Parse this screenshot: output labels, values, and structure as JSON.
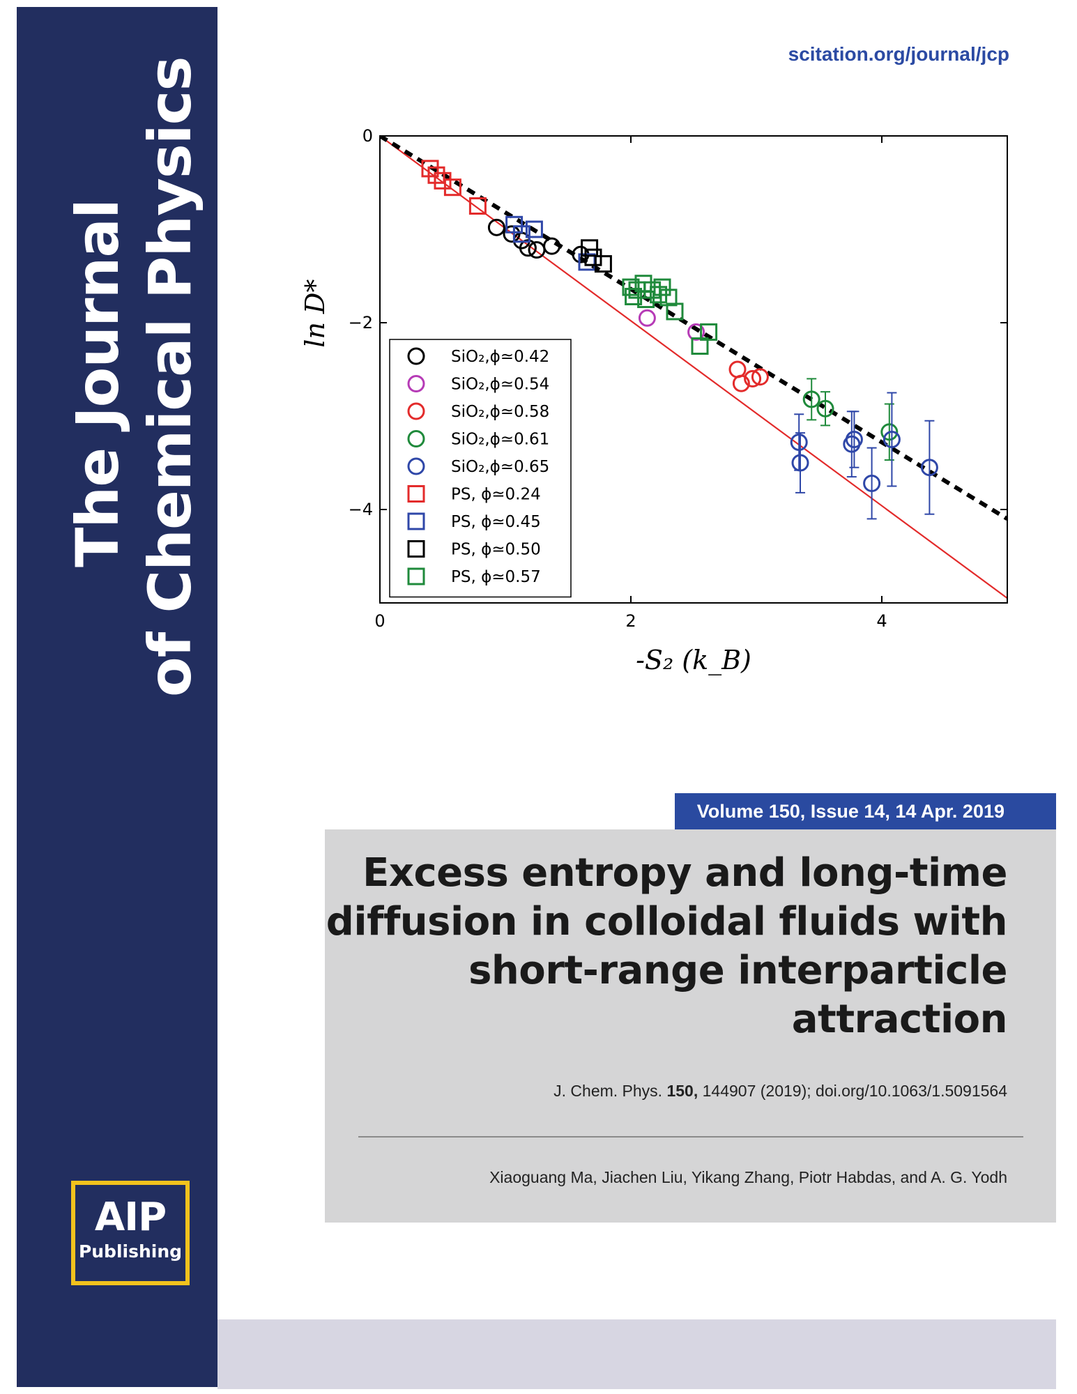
{
  "journal": {
    "title_line1": "The Journal",
    "title_line2": "of Chemical Physics",
    "url": "scitation.org/journal/jcp",
    "logo_line1": "AIP",
    "logo_line2": "Publishing",
    "brand_color": "#222e5f",
    "accent_color": "#2a4aa0",
    "logo_border_color": "#f2c21d"
  },
  "issue": {
    "banner": "Volume 150, Issue 14, 14 Apr. 2019"
  },
  "article": {
    "title": "Excess entropy and long-time diffusion in colloidal fluids with short-range interparticle attraction",
    "citation_prefix": "J. Chem. Phys. ",
    "citation_volume": "150,",
    "citation_rest": " 144907 (2019); doi.org/10.1063/1.5091564",
    "authors": "Xiaoguang Ma, Jiachen Liu, Yikang Zhang, Piotr Habdas, and A. G. Yodh"
  },
  "chart_data": {
    "type": "scatter",
    "xlabel": "-S₂ (k_B)",
    "ylabel": "ln D*",
    "xlim": [
      0,
      5
    ],
    "ylim": [
      -5,
      0
    ],
    "xticks": [
      0,
      2,
      4
    ],
    "yticks": [
      0,
      -2,
      -4
    ],
    "xtick_labels": [
      "0",
      "2",
      "4"
    ],
    "ytick_labels": [
      "0",
      "−2",
      "−4"
    ],
    "grid": false,
    "legend_position": "lower-left",
    "lines": [
      {
        "style": "solid",
        "color": "#e32b2b",
        "x": [
          0,
          5
        ],
        "y": [
          0,
          -4.95
        ]
      },
      {
        "style": "dashed",
        "color": "#000000",
        "x": [
          0,
          5
        ],
        "y": [
          0,
          -4.1
        ]
      }
    ],
    "series": [
      {
        "name": "SiO₂,ϕ≃0.42",
        "marker": "circle",
        "color": "#000000",
        "points": [
          [
            0.93,
            -0.98
          ],
          [
            1.05,
            -1.05
          ],
          [
            1.13,
            -1.12
          ],
          [
            1.18,
            -1.2
          ],
          [
            1.25,
            -1.22
          ],
          [
            1.37,
            -1.18
          ],
          [
            1.6,
            -1.27
          ]
        ]
      },
      {
        "name": "SiO₂,ϕ≃0.54",
        "marker": "circle",
        "color": "#b63bb6",
        "points": [
          [
            2.13,
            -1.95
          ],
          [
            2.52,
            -2.1
          ]
        ]
      },
      {
        "name": "SiO₂,ϕ≃0.58",
        "marker": "circle",
        "color": "#e32b2b",
        "points": [
          [
            2.85,
            -2.5
          ],
          [
            2.88,
            -2.65
          ],
          [
            2.97,
            -2.6
          ],
          [
            3.03,
            -2.58
          ]
        ]
      },
      {
        "name": "SiO₂,ϕ≃0.61",
        "marker": "circle",
        "color": "#1f8a3b",
        "points": [
          [
            3.44,
            -2.82
          ],
          [
            3.55,
            -2.92
          ],
          [
            4.06,
            -3.17
          ]
        ],
        "errors": [
          0.22,
          0.18,
          0.3
        ]
      },
      {
        "name": "SiO₂,ϕ≃0.65",
        "marker": "circle",
        "color": "#2f47a8",
        "points": [
          [
            3.34,
            -3.28
          ],
          [
            3.35,
            -3.5
          ],
          [
            3.76,
            -3.3
          ],
          [
            3.78,
            -3.25
          ],
          [
            3.92,
            -3.72
          ],
          [
            4.08,
            -3.25
          ],
          [
            4.38,
            -3.55
          ]
        ],
        "errors": [
          0.3,
          0.32,
          0.35,
          0.3,
          0.38,
          0.5,
          0.5
        ]
      },
      {
        "name": "PS, ϕ≃0.24",
        "marker": "square",
        "color": "#e32b2b",
        "points": [
          [
            0.4,
            -0.35
          ],
          [
            0.45,
            -0.42
          ],
          [
            0.5,
            -0.48
          ],
          [
            0.58,
            -0.55
          ],
          [
            0.78,
            -0.75
          ]
        ]
      },
      {
        "name": "PS, ϕ≃0.45",
        "marker": "square",
        "color": "#2f47a8",
        "points": [
          [
            1.07,
            -0.95
          ],
          [
            1.13,
            -1.05
          ],
          [
            1.23,
            -1.0
          ],
          [
            1.65,
            -1.35
          ]
        ]
      },
      {
        "name": "PS, ϕ≃0.50",
        "marker": "square",
        "color": "#000000",
        "points": [
          [
            1.67,
            -1.2
          ],
          [
            1.7,
            -1.3
          ],
          [
            1.78,
            -1.37
          ]
        ]
      },
      {
        "name": "PS, ϕ≃0.57",
        "marker": "square",
        "color": "#1f8a3b",
        "points": [
          [
            2.0,
            -1.62
          ],
          [
            2.02,
            -1.72
          ],
          [
            2.05,
            -1.65
          ],
          [
            2.1,
            -1.58
          ],
          [
            2.12,
            -1.75
          ],
          [
            2.17,
            -1.65
          ],
          [
            2.22,
            -1.7
          ],
          [
            2.25,
            -1.62
          ],
          [
            2.3,
            -1.73
          ],
          [
            2.35,
            -1.88
          ],
          [
            2.55,
            -2.25
          ],
          [
            2.62,
            -2.1
          ]
        ]
      }
    ]
  }
}
